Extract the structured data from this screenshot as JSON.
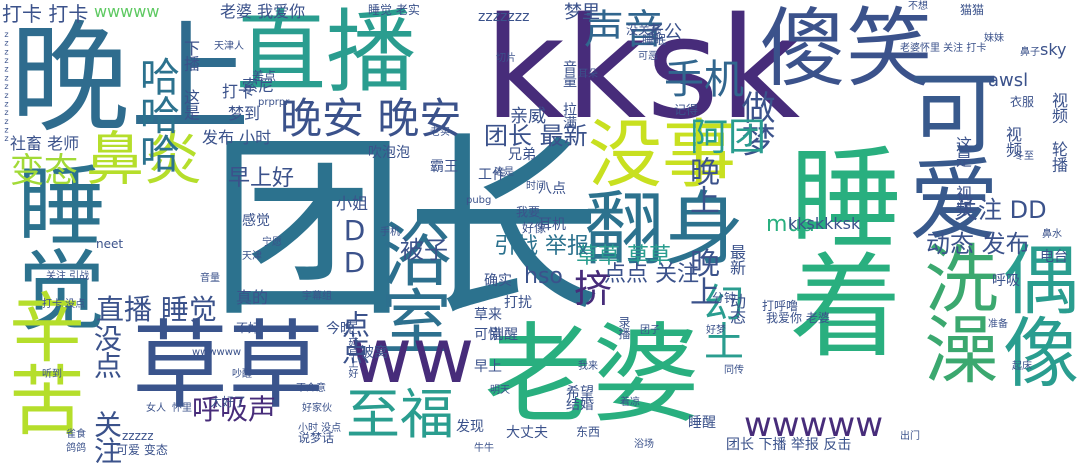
{
  "palette": {
    "dark_purple": "#440154",
    "indigo": "#3b528b",
    "teal": "#21918c",
    "sea_green": "#2a9d8f",
    "green": "#5ec962",
    "lime": "#b5de2b",
    "yellow_green": "#c8e020"
  },
  "words": [
    {
      "id": "tuanzhang",
      "text": "团长"
    },
    {
      "id": "kksk",
      "text": "kksk"
    },
    {
      "id": "wanshang",
      "text": "晚上"
    },
    {
      "id": "zhibo",
      "text": "直播"
    },
    {
      "id": "shaxiao",
      "text": "傻笑"
    },
    {
      "id": "kekai",
      "text": "可爱"
    },
    {
      "id": "shuizhao",
      "text": "睡着"
    },
    {
      "id": "shuijiao",
      "text": "睡觉"
    },
    {
      "id": "caocao",
      "text": "草草"
    },
    {
      "id": "laopo",
      "text": "老婆"
    },
    {
      "id": "xinku",
      "text": "辛苦"
    },
    {
      "id": "fanshen",
      "text": "翻身"
    },
    {
      "id": "yushi",
      "text": "浴室"
    },
    {
      "id": "meishi",
      "text": "没事"
    },
    {
      "id": "xizao",
      "text": "洗澡"
    },
    {
      "id": "ouxiang",
      "text": "偶像"
    },
    {
      "id": "ww",
      "text": "ww"
    },
    {
      "id": "zhifu",
      "text": "至福"
    },
    {
      "id": "biyan",
      "text": "鼻炎"
    },
    {
      "id": "shengyin",
      "text": "声音"
    },
    {
      "id": "shouji",
      "text": "手机"
    },
    {
      "id": "hahaha",
      "text": "哈哈哈"
    },
    {
      "id": "wanan",
      "text": "晚安 晚安"
    },
    {
      "id": "biantai",
      "text": "变态"
    },
    {
      "id": "zuomeng",
      "text": "做梦"
    },
    {
      "id": "atuan",
      "text": "阿团"
    },
    {
      "id": "zhibo_shuijiao",
      "text": "直播 睡觉"
    },
    {
      "id": "huxisheng",
      "text": "呼吸声"
    },
    {
      "id": "wwwww",
      "text": "wwwww"
    },
    {
      "id": "huantu",
      "text": "幻土"
    },
    {
      "id": "meidian",
      "text": "没点 关注"
    },
    {
      "id": "dd_diandian",
      "text": "DD 点点"
    },
    {
      "id": "jiji",
      "text": "挤"
    },
    {
      "id": "tuanzhang_zuixin",
      "text": "团长 最新"
    },
    {
      "id": "guanzhu_dd",
      "text": "关注 DD"
    },
    {
      "id": "dongtai_fabu",
      "text": "动态 发布"
    },
    {
      "id": "bei_zi",
      "text": "被子"
    },
    {
      "id": "zaoshanghao",
      "text": "早上好"
    },
    {
      "id": "wanshang_2",
      "text": "晚上 晚上"
    },
    {
      "id": "caocao_caocao",
      "text": "草草 草草"
    },
    {
      "id": "yinzhang_jubao",
      "text": "引战 举报"
    },
    {
      "id": "diandian_guanzhu",
      "text": "点点 关注"
    },
    {
      "id": "hso",
      "text": "hso"
    },
    {
      "id": "mua",
      "text": "mua"
    },
    {
      "id": "kkskkksk",
      "text": "kkskkksk"
    },
    {
      "id": "sky",
      "text": "sky"
    },
    {
      "id": "awsl",
      "text": "awsl"
    },
    {
      "id": "laogong",
      "text": "老公"
    },
    {
      "id": "dakadaka",
      "text": "打卡 打卡"
    },
    {
      "id": "wwwww_top",
      "text": "wwwww"
    },
    {
      "id": "laoai",
      "text": "老婆 我爱你"
    },
    {
      "id": "shuijiao_laoshi",
      "text": "睡觉 老实"
    },
    {
      "id": "zzzzzzz",
      "text": "zzzzzzz"
    },
    {
      "id": "mengli",
      "text": "梦里"
    },
    {
      "id": "qinwei",
      "text": "亲威"
    },
    {
      "id": "suoni",
      "text": "索尼"
    },
    {
      "id": "fabu_xiaoshi",
      "text": "发布 小时"
    },
    {
      "id": "shequn_laoshi",
      "text": "社畜 老师"
    },
    {
      "id": "xiaojie",
      "text": "小姐"
    },
    {
      "id": "ganjue",
      "text": "感觉"
    },
    {
      "id": "daka",
      "text": "打卡"
    },
    {
      "id": "mengdao",
      "text": "梦到"
    },
    {
      "id": "wanshi",
      "text": "下播 这是"
    },
    {
      "id": "chuipaopao",
      "text": "吹泡泡"
    },
    {
      "id": "gongzuo",
      "text": "工作"
    },
    {
      "id": "baizhu",
      "text": "霸王"
    },
    {
      "id": "xiongdi",
      "text": "兄弟"
    },
    {
      "id": "badian",
      "text": "八点"
    },
    {
      "id": "dazhe",
      "text": "打扰"
    },
    {
      "id": "erji",
      "text": "耳机"
    },
    {
      "id": "queshi",
      "text": "确实"
    },
    {
      "id": "zhende",
      "text": "真的"
    },
    {
      "id": "kexi",
      "text": "可惜"
    },
    {
      "id": "jintian",
      "text": "今晚"
    },
    {
      "id": "beiwo",
      "text": "被窝"
    },
    {
      "id": "caolai",
      "text": "草来"
    },
    {
      "id": "biexing",
      "text": "别醒"
    },
    {
      "id": "xiwang",
      "text": "希望"
    },
    {
      "id": "zaoshang",
      "text": "早上"
    },
    {
      "id": "jiehun",
      "text": "结婚"
    },
    {
      "id": "faxian",
      "text": "发现"
    },
    {
      "id": "dazhangfu",
      "text": "大丈夫"
    },
    {
      "id": "shuixing",
      "text": "睡醒"
    },
    {
      "id": "tuanzhang_xiabo",
      "text": "团长 下播 举报 反击"
    },
    {
      "id": "taihaole",
      "text": "太好了"
    },
    {
      "id": "keai_biantai",
      "text": "可爱 变态"
    },
    {
      "id": "shuomenghua",
      "text": "说梦话"
    },
    {
      "id": "zzzzz",
      "text": "zzzzz"
    },
    {
      "id": "dahulu",
      "text": "打呼噜"
    },
    {
      "id": "fenzhong",
      "text": "分钟"
    },
    {
      "id": "woaini",
      "text": "我爱你 老婆"
    },
    {
      "id": "zuixin_dongtai",
      "text": "最新 动态"
    },
    {
      "id": "huxi",
      "text": "呼吸"
    },
    {
      "id": "diantai",
      "text": "电台"
    },
    {
      "id": "shipin",
      "text": "视频"
    },
    {
      "id": "shipin_lunbo",
      "text": "视频 轮播"
    },
    {
      "id": "zheshi_shipin",
      "text": "这是 视频"
    },
    {
      "id": "jide",
      "text": "记得"
    },
    {
      "id": "meiguanxi",
      "text": "没关系"
    },
    {
      "id": "yinliang_lajie",
      "text": "音量 拉满"
    },
    {
      "id": "huoguo",
      "text": "衣服"
    },
    {
      "id": "tianjinren",
      "text": "天津人"
    },
    {
      "id": "woyao",
      "text": "我要"
    },
    {
      "id": "haoxiang",
      "text": "好像"
    },
    {
      "id": "meimei",
      "text": "妹妹"
    },
    {
      "id": "zhaoliang",
      "text": "着凉"
    },
    {
      "id": "wolai",
      "text": "我来"
    },
    {
      "id": "tongchuan",
      "text": "同传"
    },
    {
      "id": "zhunbei",
      "text": "准备"
    },
    {
      "id": "yuyin",
      "text": "录播"
    },
    {
      "id": "zaoshanghao_wohao",
      "text": "早上好早上好"
    },
    {
      "id": "laopo_xiaoshi",
      "text": "老婆怀里 关注 打卡"
    },
    {
      "id": "erduo",
      "text": "耳朵"
    },
    {
      "id": "mingtian",
      "text": "明天"
    },
    {
      "id": "shuimian",
      "text": "睡眠"
    },
    {
      "id": "maomao",
      "text": "猫猫"
    },
    {
      "id": "buxiang",
      "text": "不想"
    },
    {
      "id": "bizi",
      "text": "鼻子"
    },
    {
      "id": "kaiqi",
      "text": "可恶"
    },
    {
      "id": "dakazhi",
      "text": "打卡 没点"
    },
    {
      "id": "guanzhu_yinzhan",
      "text": "关注 引战"
    },
    {
      "id": "hao_pro",
      "text": "prprpr"
    },
    {
      "id": "nvren",
      "text": "女人"
    },
    {
      "id": "huaili",
      "text": "怀里"
    },
    {
      "id": "neet",
      "text": "neet"
    },
    {
      "id": "pubg",
      "text": "pubg"
    },
    {
      "id": "shijian",
      "text": "时间"
    },
    {
      "id": "zheshi",
      "text": "这是"
    },
    {
      "id": "dongxi",
      "text": "东西"
    },
    {
      "id": "yushi_2",
      "text": "浴场"
    },
    {
      "id": "xiaoyu",
      "text": "宇幕组"
    },
    {
      "id": "chuiu",
      "text": "出门"
    },
    {
      "id": "dongzhi",
      "text": "冬至"
    },
    {
      "id": "bisui",
      "text": "鼻水"
    },
    {
      "id": "tianjin",
      "text": "天津"
    },
    {
      "id": "haojiaohuo",
      "text": "好家伙"
    },
    {
      "id": "shaoxing",
      "text": "吵醒"
    },
    {
      "id": "bukeqi",
      "text": "不介意"
    },
    {
      "id": "laoshi",
      "text": "老实"
    },
    {
      "id": "gan",
      "text": "宁愿"
    },
    {
      "id": "yinliang",
      "text": "音量"
    },
    {
      "id": "chuliang",
      "text": "差点"
    },
    {
      "id": "qiechu",
      "text": "切片"
    },
    {
      "id": "qidian",
      "text": "起床"
    },
    {
      "id": "tuan",
      "text": "团子"
    },
    {
      "id": "shoufa",
      "text": "手机"
    },
    {
      "id": "bu_hao",
      "text": "不好"
    },
    {
      "id": "xiaoshi_meidian",
      "text": "小时 没点"
    },
    {
      "id": "tingdao",
      "text": "听到"
    },
    {
      "id": "niuniu",
      "text": "牛牛"
    },
    {
      "id": "quesu",
      "text": "雀食"
    },
    {
      "id": "haomeng",
      "text": "好梦"
    },
    {
      "id": "gugu",
      "text": "鸽鸽"
    },
    {
      "id": "zzz_small",
      "text": "zzzzzzzzzzzzz"
    },
    {
      "id": "wwwwww_small",
      "text": "wwwwww"
    }
  ]
}
